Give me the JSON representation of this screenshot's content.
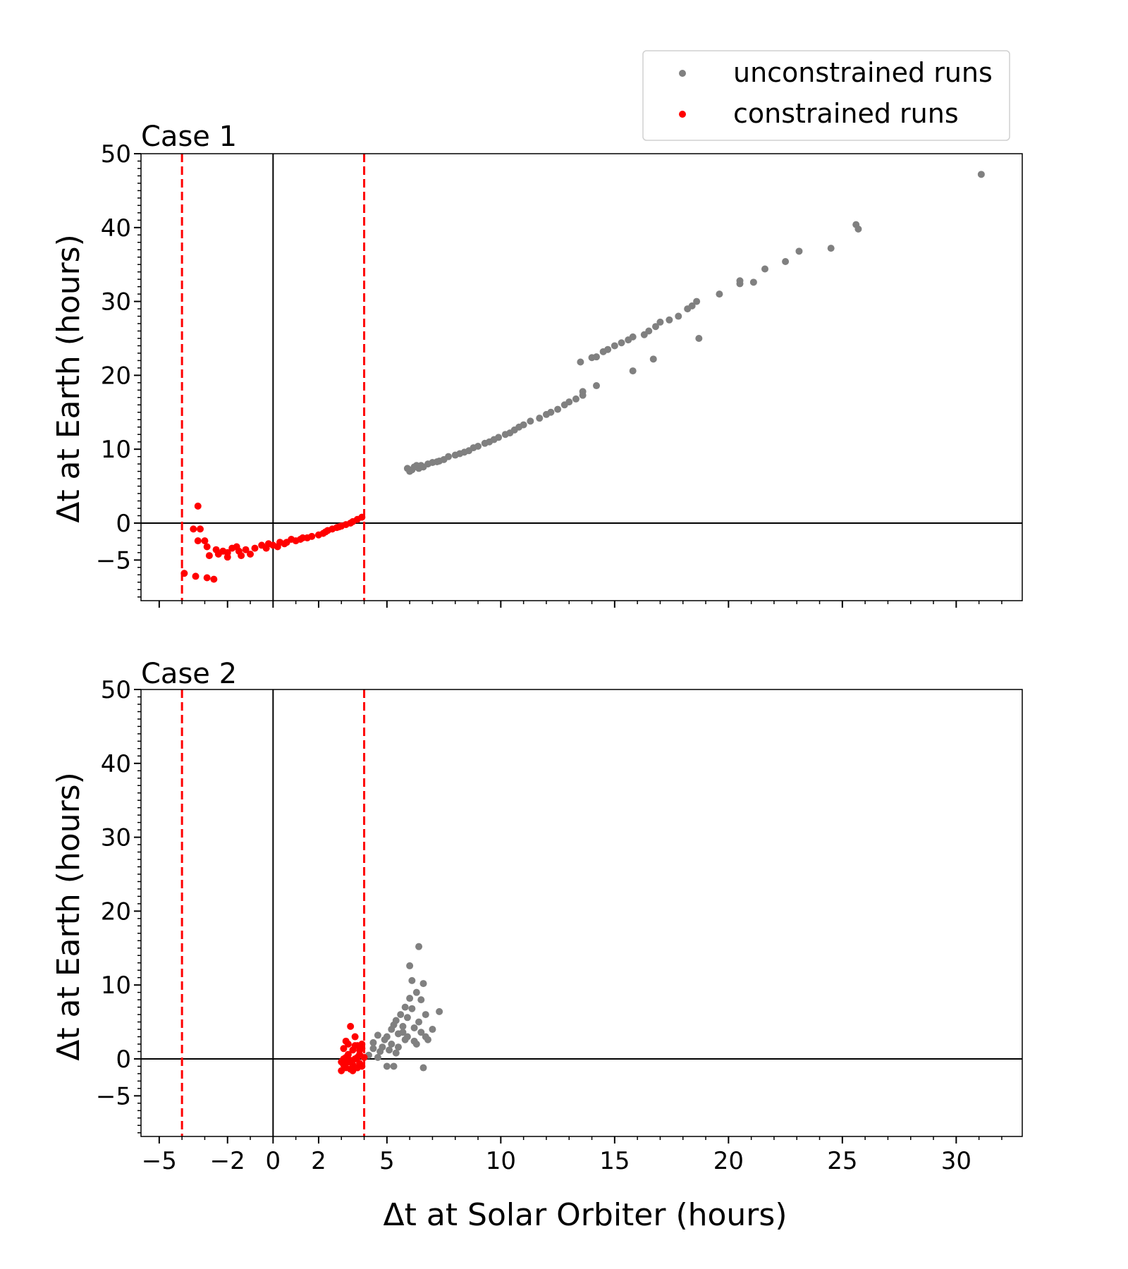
{
  "figure": {
    "legend": [
      {
        "label": "unconstrained runs",
        "color": "#808080"
      },
      {
        "label": "constrained runs",
        "color": "#ff0000"
      }
    ],
    "xlabel": "Δt at Solar Orbiter (hours)",
    "ylabel": "Δt at Earth (hours)"
  },
  "colors": {
    "unconstrained": "#808080",
    "constrained": "#ff0000",
    "axis": "#000000"
  },
  "chart_data": [
    {
      "type": "scatter",
      "title": "Case 1",
      "xlabel": "",
      "ylabel": "Δt at Earth (hours)",
      "xlim": [
        -5.8,
        32.9
      ],
      "ylim": [
        -10.5,
        50
      ],
      "xticks": [
        -5,
        -2,
        0,
        2,
        5,
        10,
        15,
        20,
        25,
        30
      ],
      "xtick_labels": [
        "",
        "",
        "",
        "",
        "",
        "",
        "",
        "",
        "",
        ""
      ],
      "yticks": [
        -5,
        0,
        10,
        20,
        30,
        40,
        50
      ],
      "ytick_labels": [
        "−5",
        "0",
        "10",
        "20",
        "30",
        "40",
        "50"
      ],
      "vlines_dashed": [
        -4.0,
        4.0
      ],
      "series": [
        {
          "name": "unconstrained runs",
          "color": "#808080",
          "points": [
            [
              5.9,
              7.4
            ],
            [
              6.0,
              7.0
            ],
            [
              6.1,
              7.2
            ],
            [
              6.2,
              7.6
            ],
            [
              6.3,
              7.8
            ],
            [
              6.4,
              7.4
            ],
            [
              6.5,
              7.8
            ],
            [
              6.6,
              7.6
            ],
            [
              6.8,
              8.0
            ],
            [
              7.0,
              8.2
            ],
            [
              7.2,
              8.3
            ],
            [
              7.3,
              8.4
            ],
            [
              7.5,
              8.6
            ],
            [
              7.7,
              9.0
            ],
            [
              8.0,
              9.2
            ],
            [
              8.2,
              9.4
            ],
            [
              8.4,
              9.6
            ],
            [
              8.6,
              9.8
            ],
            [
              8.8,
              10.2
            ],
            [
              9.0,
              10.4
            ],
            [
              9.3,
              10.8
            ],
            [
              9.5,
              11.0
            ],
            [
              9.7,
              11.3
            ],
            [
              9.9,
              11.6
            ],
            [
              10.2,
              12.0
            ],
            [
              10.4,
              12.2
            ],
            [
              10.6,
              12.6
            ],
            [
              10.8,
              13.0
            ],
            [
              11.0,
              13.3
            ],
            [
              11.3,
              13.8
            ],
            [
              11.7,
              14.2
            ],
            [
              12.0,
              14.7
            ],
            [
              12.2,
              15.0
            ],
            [
              12.5,
              15.4
            ],
            [
              12.8,
              16.0
            ],
            [
              13.0,
              16.4
            ],
            [
              13.3,
              16.8
            ],
            [
              13.6,
              17.3
            ],
            [
              13.6,
              17.8
            ],
            [
              14.2,
              18.6
            ],
            [
              13.5,
              21.8
            ],
            [
              14.0,
              22.4
            ],
            [
              14.2,
              22.5
            ],
            [
              14.5,
              23.2
            ],
            [
              14.7,
              23.5
            ],
            [
              15.0,
              24.0
            ],
            [
              15.3,
              24.4
            ],
            [
              15.6,
              24.8
            ],
            [
              15.8,
              25.2
            ],
            [
              16.3,
              25.5
            ],
            [
              16.5,
              26.0
            ],
            [
              16.8,
              26.6
            ],
            [
              17.0,
              27.2
            ],
            [
              17.4,
              27.5
            ],
            [
              17.8,
              28.0
            ],
            [
              18.2,
              29.0
            ],
            [
              18.4,
              29.4
            ],
            [
              18.6,
              30.0
            ],
            [
              15.8,
              20.6
            ],
            [
              16.7,
              22.2
            ],
            [
              18.7,
              25.0
            ],
            [
              19.6,
              31.0
            ],
            [
              20.5,
              32.4
            ],
            [
              20.5,
              32.8
            ],
            [
              21.1,
              32.6
            ],
            [
              21.6,
              34.4
            ],
            [
              22.5,
              35.4
            ],
            [
              23.1,
              36.8
            ],
            [
              24.5,
              37.2
            ],
            [
              25.6,
              40.4
            ],
            [
              25.7,
              39.8
            ],
            [
              31.1,
              47.2
            ]
          ]
        },
        {
          "name": "constrained runs",
          "color": "#ff0000",
          "points": [
            [
              -3.3,
              2.3
            ],
            [
              -3.5,
              -0.8
            ],
            [
              -3.2,
              -0.8
            ],
            [
              -3.3,
              -2.4
            ],
            [
              -3.0,
              -2.4
            ],
            [
              -2.9,
              -3.2
            ],
            [
              -2.5,
              -3.6
            ],
            [
              -2.2,
              -3.8
            ],
            [
              -2.8,
              -4.4
            ],
            [
              -2.4,
              -4.2
            ],
            [
              -1.8,
              -3.4
            ],
            [
              -1.5,
              -3.8
            ],
            [
              -1.2,
              -3.6
            ],
            [
              -0.8,
              -3.4
            ],
            [
              -0.5,
              -3.0
            ],
            [
              -0.2,
              -2.8
            ],
            [
              0.2,
              -3.2
            ],
            [
              0.5,
              -2.8
            ],
            [
              1.0,
              -2.4
            ],
            [
              1.3,
              -2.0
            ],
            [
              1.7,
              -1.8
            ],
            [
              2.0,
              -1.6
            ],
            [
              2.3,
              -1.2
            ],
            [
              2.6,
              -0.8
            ],
            [
              2.9,
              -0.5
            ],
            [
              3.2,
              -0.2
            ],
            [
              3.5,
              0.2
            ],
            [
              3.7,
              0.5
            ],
            [
              3.9,
              0.8
            ],
            [
              -2.0,
              -4.6
            ],
            [
              -1.0,
              -4.2
            ],
            [
              -0.3,
              -3.4
            ],
            [
              0.3,
              -2.6
            ],
            [
              0.8,
              -2.2
            ],
            [
              1.5,
              -2.0
            ],
            [
              2.2,
              -1.4
            ],
            [
              2.8,
              -0.6
            ],
            [
              3.4,
              0.0
            ],
            [
              -1.6,
              -3.2
            ],
            [
              0.0,
              -3.0
            ],
            [
              -3.9,
              -6.8
            ],
            [
              -3.4,
              -7.2
            ],
            [
              -2.9,
              -7.4
            ],
            [
              -2.6,
              -7.6
            ],
            [
              -2.0,
              -4.0
            ],
            [
              -1.4,
              -4.4
            ],
            [
              0.6,
              -2.6
            ],
            [
              1.2,
              -2.2
            ],
            [
              2.4,
              -1.0
            ],
            [
              3.0,
              -0.4
            ]
          ]
        }
      ]
    },
    {
      "type": "scatter",
      "title": "Case 2",
      "xlabel": "Δt at Solar Orbiter (hours)",
      "ylabel": "Δt at Earth (hours)",
      "xlim": [
        -5.8,
        32.9
      ],
      "ylim": [
        -10.5,
        50
      ],
      "xticks": [
        -5,
        -2,
        0,
        2,
        5,
        10,
        15,
        20,
        25,
        30
      ],
      "xtick_labels": [
        "−5",
        "−2",
        "0",
        "2",
        "5",
        "10",
        "15",
        "20",
        "25",
        "30"
      ],
      "yticks": [
        -5,
        0,
        10,
        20,
        30,
        40,
        50
      ],
      "ytick_labels": [
        "−5",
        "0",
        "10",
        "20",
        "30",
        "40",
        "50"
      ],
      "vlines_dashed": [
        -4.0,
        4.0
      ],
      "series": [
        {
          "name": "unconstrained runs",
          "color": "#808080",
          "points": [
            [
              4.2,
              0.5
            ],
            [
              4.4,
              2.2
            ],
            [
              4.6,
              3.2
            ],
            [
              4.7,
              1.0
            ],
            [
              4.9,
              2.6
            ],
            [
              5.0,
              3.0
            ],
            [
              5.0,
              -1.0
            ],
            [
              5.2,
              4.0
            ],
            [
              5.2,
              2.0
            ],
            [
              5.3,
              -1.0
            ],
            [
              5.4,
              5.2
            ],
            [
              5.5,
              3.4
            ],
            [
              5.5,
              1.6
            ],
            [
              5.6,
              6.0
            ],
            [
              5.7,
              4.4
            ],
            [
              5.8,
              2.6
            ],
            [
              5.8,
              7.0
            ],
            [
              5.9,
              3.0
            ],
            [
              6.0,
              8.2
            ],
            [
              6.0,
              12.6
            ],
            [
              6.1,
              6.8
            ],
            [
              6.2,
              4.2
            ],
            [
              6.2,
              2.4
            ],
            [
              6.3,
              9.0
            ],
            [
              6.4,
              15.2
            ],
            [
              6.4,
              5.0
            ],
            [
              6.5,
              8.0
            ],
            [
              6.6,
              10.2
            ],
            [
              6.6,
              -1.2
            ],
            [
              6.7,
              6.0
            ],
            [
              6.7,
              3.0
            ],
            [
              6.8,
              2.6
            ],
            [
              7.0,
              4.0
            ],
            [
              7.3,
              6.4
            ],
            [
              5.1,
              1.2
            ],
            [
              5.4,
              0.8
            ],
            [
              4.8,
              1.6
            ],
            [
              6.1,
              10.6
            ],
            [
              6.3,
              2.0
            ],
            [
              5.7,
              3.6
            ],
            [
              4.4,
              1.4
            ],
            [
              5.9,
              5.6
            ],
            [
              6.5,
              3.6
            ],
            [
              4.6,
              0.2
            ],
            [
              5.3,
              4.6
            ]
          ]
        },
        {
          "name": "constrained runs",
          "color": "#ff0000",
          "points": [
            [
              3.0,
              -0.4
            ],
            [
              3.0,
              -1.6
            ],
            [
              3.1,
              1.4
            ],
            [
              3.1,
              -0.8
            ],
            [
              3.2,
              0.2
            ],
            [
              3.2,
              -1.2
            ],
            [
              3.3,
              2.0
            ],
            [
              3.3,
              0.6
            ],
            [
              3.3,
              -0.4
            ],
            [
              3.4,
              4.4
            ],
            [
              3.4,
              -1.4
            ],
            [
              3.5,
              1.2
            ],
            [
              3.5,
              -0.8
            ],
            [
              3.6,
              3.0
            ],
            [
              3.6,
              0.0
            ],
            [
              3.7,
              -1.2
            ],
            [
              3.7,
              1.8
            ],
            [
              3.8,
              0.6
            ],
            [
              3.8,
              -0.6
            ],
            [
              3.9,
              1.4
            ],
            [
              3.9,
              -1.0
            ],
            [
              4.0,
              0.2
            ],
            [
              3.9,
              2.0
            ],
            [
              3.6,
              1.8
            ],
            [
              3.2,
              2.4
            ],
            [
              3.4,
              -0.2
            ],
            [
              3.7,
              0.2
            ],
            [
              3.1,
              0.0
            ],
            [
              3.5,
              -1.6
            ],
            [
              3.8,
              1.2
            ]
          ]
        }
      ]
    }
  ]
}
